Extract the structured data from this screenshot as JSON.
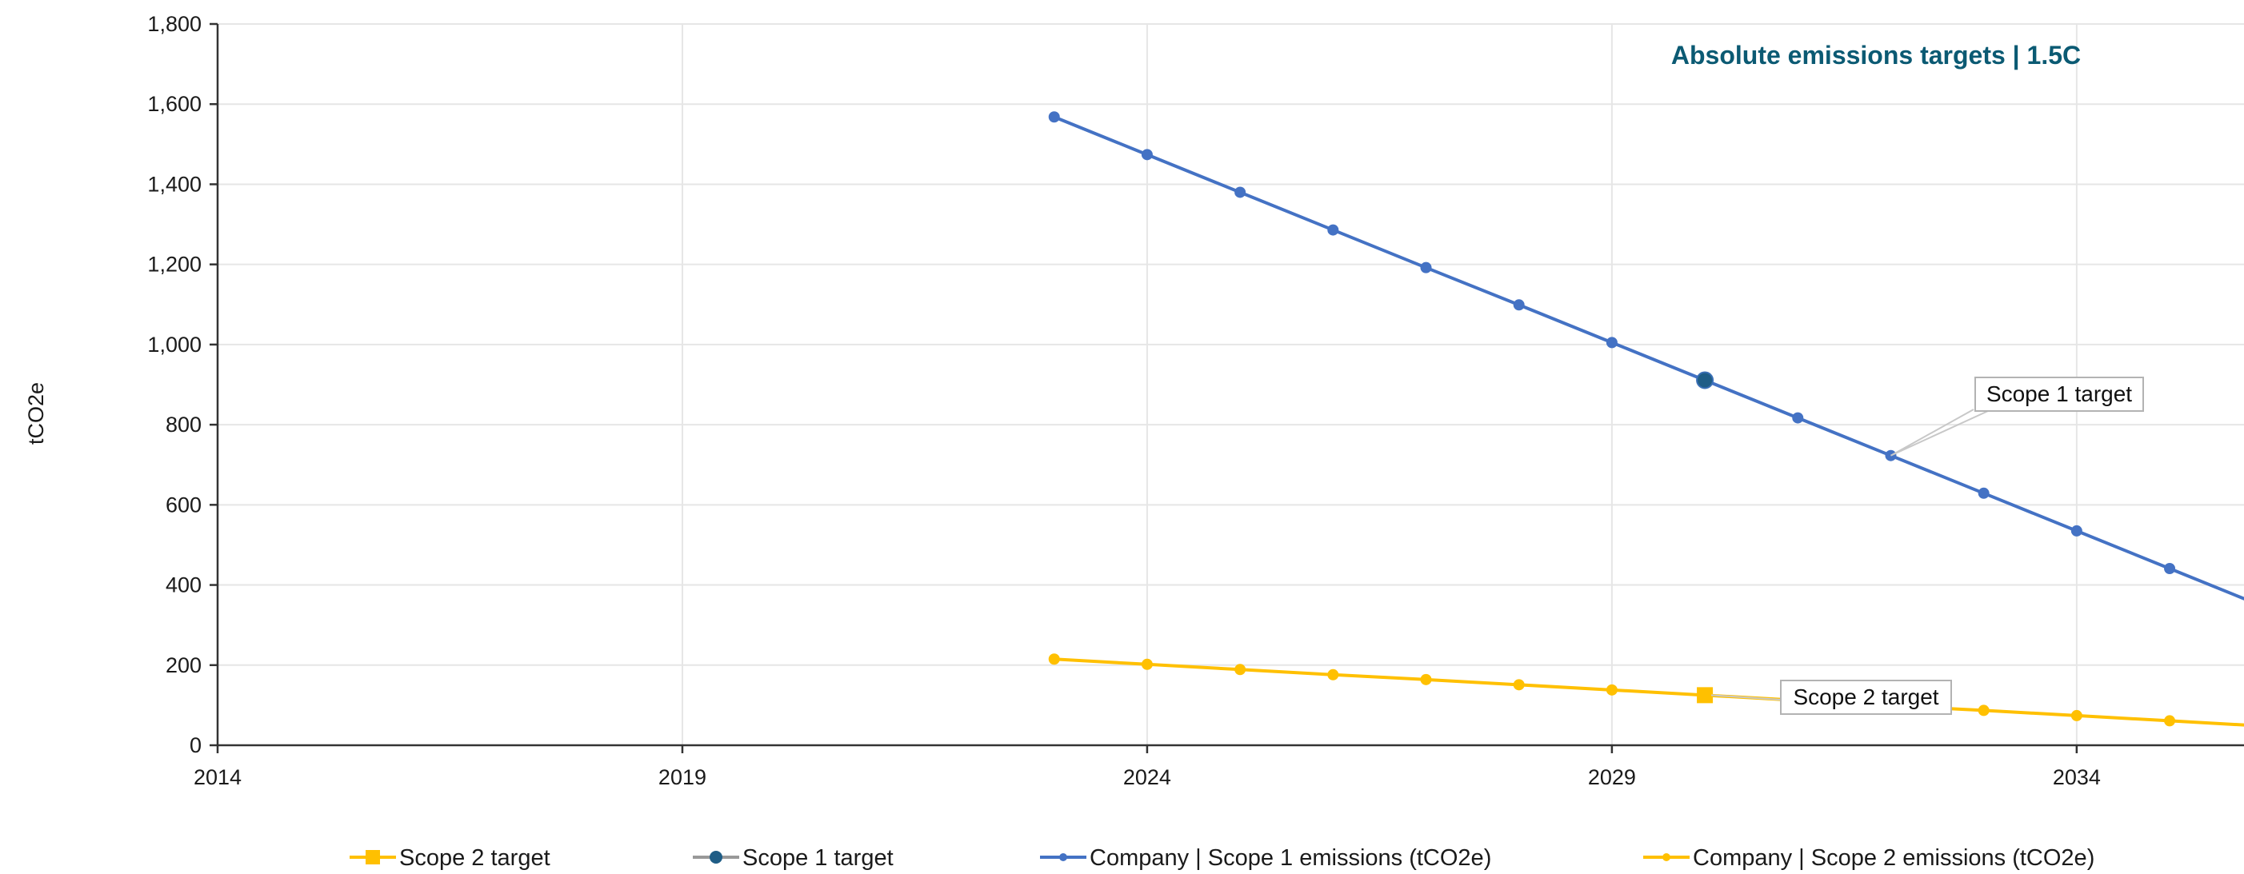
{
  "chart_data": {
    "type": "line",
    "title": "Absolute emissions targets | 1.5C",
    "xlabel": "",
    "ylabel": "tCO2e",
    "xlim": [
      2014,
      2035.8
    ],
    "ylim": [
      0,
      1800
    ],
    "x_ticks": [
      2014,
      2019,
      2024,
      2029,
      2034
    ],
    "x_tick_labels": [
      "2014",
      "2019",
      "2024",
      "2029",
      "2034"
    ],
    "y_ticks": [
      0,
      200,
      400,
      600,
      800,
      1000,
      1200,
      1400,
      1600,
      1800
    ],
    "y_tick_labels": [
      "0",
      "200",
      "400",
      "600",
      "800",
      "1,000",
      "1,200",
      "1,400",
      "1,600",
      "1,800"
    ],
    "grid": true,
    "legend_position": "bottom",
    "series": [
      {
        "name": "Company | Scope 1 emissions (tCO2e)",
        "color": "#4472c4",
        "marker": "circle",
        "x": [
          2023,
          2024,
          2025,
          2026,
          2027,
          2028,
          2029,
          2030,
          2031,
          2032,
          2033,
          2034,
          2035,
          2036
        ],
        "y": [
          1568,
          1474,
          1380,
          1286,
          1192,
          1099,
          1005,
          911,
          817,
          723,
          629,
          535,
          441,
          347
        ]
      },
      {
        "name": "Company | Scope 2 emissions (tCO2e)",
        "color": "#ffc000",
        "marker": "circle",
        "x": [
          2023,
          2024,
          2025,
          2026,
          2027,
          2028,
          2029,
          2030,
          2031,
          2032,
          2033,
          2034,
          2035,
          2036
        ],
        "y": [
          215,
          202,
          189,
          176,
          164,
          151,
          138,
          125,
          112,
          99,
          87,
          74,
          61,
          48
        ]
      },
      {
        "name": "Scope 1 target",
        "color": "#1f5d86",
        "legend_line_color": "#999999",
        "marker": "circle",
        "x": [
          2030
        ],
        "y": [
          911
        ]
      },
      {
        "name": "Scope 2 target",
        "color": "#ffc000",
        "marker": "square",
        "x": [
          2030
        ],
        "y": [
          125
        ]
      }
    ],
    "annotations": [
      {
        "text": "Scope 1 target",
        "x": 2032,
        "y": 723
      },
      {
        "text": "Scope 2 target",
        "x": 2030,
        "y": 125
      }
    ],
    "legend_order": [
      "Scope 2 target",
      "Scope 1 target",
      "Company | Scope 1 emissions (tCO2e)",
      "Company | Scope 2 emissions (tCO2e)"
    ],
    "title_color": "#0b5a73"
  }
}
